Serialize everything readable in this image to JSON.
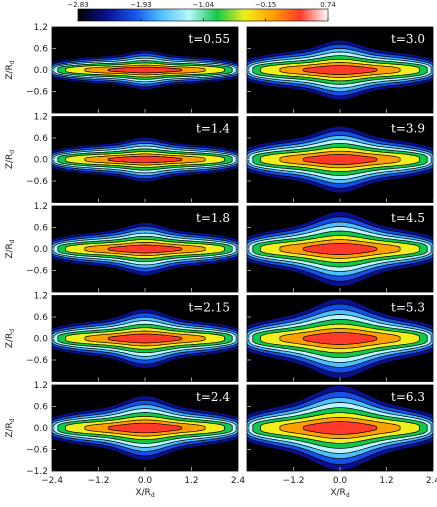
{
  "colors": {
    "levels": [
      "#000000",
      "#0a0f8c",
      "#1450e6",
      "#4ec0ff",
      "#b9f6ff",
      "#12c84a",
      "#f2f01c",
      "#ffa000",
      "#ff3a2a",
      "#ffffff"
    ],
    "contour_line": "#000000",
    "panel_background": "#000000",
    "label": "#ffffff"
  },
  "chart_data": {
    "type": "heatmap",
    "colorbar": {
      "ticks": [
        "−2.83",
        "−1.93",
        "−1.04",
        "−0.15",
        "0.74"
      ],
      "range": [
        -2.83,
        0.74
      ]
    },
    "x_ticks": [
      "−2.4",
      "−1.2",
      "0.0",
      "1.2",
      "2.4"
    ],
    "y_ticks": [
      "1.2",
      "0.6",
      "0.0",
      "−0.6",
      "−1.2"
    ],
    "xlabel": "X/R",
    "xlabel_sub": "d",
    "ylabel": "Z/R",
    "ylabel_sub": "d",
    "xlim": [
      -2.4,
      2.4
    ],
    "ylim": [
      -1.2,
      1.2
    ],
    "panels": [
      {
        "label": "t=0.55",
        "thickness": 0.16,
        "bulge": 0.06,
        "core": 0.18
      },
      {
        "label": "t=3.0",
        "thickness": 0.22,
        "bulge": 0.12,
        "core": 0.24
      },
      {
        "label": "t=1.4",
        "thickness": 0.18,
        "bulge": 0.07,
        "core": 0.2
      },
      {
        "label": "t=3.9",
        "thickness": 0.24,
        "bulge": 0.14,
        "core": 0.26
      },
      {
        "label": "t=1.8",
        "thickness": 0.2,
        "bulge": 0.1,
        "core": 0.22
      },
      {
        "label": "t=4.5",
        "thickness": 0.25,
        "bulge": 0.18,
        "core": 0.3
      },
      {
        "label": "t=2.15",
        "thickness": 0.21,
        "bulge": 0.13,
        "core": 0.24
      },
      {
        "label": "t=5.3",
        "thickness": 0.26,
        "bulge": 0.2,
        "core": 0.32
      },
      {
        "label": "t=2.4",
        "thickness": 0.22,
        "bulge": 0.15,
        "core": 0.26
      },
      {
        "label": "t=6.3",
        "thickness": 0.27,
        "bulge": 0.22,
        "core": 0.33
      }
    ]
  }
}
